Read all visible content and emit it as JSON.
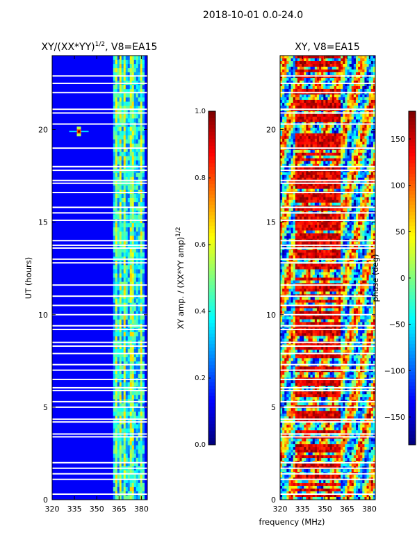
{
  "figure": {
    "suptitle": "2018-10-01 0.0-24.0",
    "xlabel": "frequency (MHz)",
    "ylabel": "UT (hours)"
  },
  "chart_data": [
    {
      "type": "heatmap",
      "title_main": "XY/(XX*YY)",
      "title_sup": "1/2",
      "title_suffix": ", V8=EA15",
      "x_ticks": [
        320,
        335,
        350,
        365,
        380
      ],
      "xlim": [
        320,
        384
      ],
      "y_ticks": [
        0,
        5,
        10,
        15,
        20
      ],
      "ylim": [
        0,
        24
      ],
      "colormap": "jet",
      "colorbar": {
        "label_main": "XY amp. / (XX*YY amp)",
        "label_sup": "1/2",
        "range": [
          0.0,
          1.0
        ],
        "ticks": [
          "0.0",
          "0.2",
          "0.4",
          "0.6",
          "0.8",
          "1.0"
        ]
      },
      "high_amplitude_band_mhz": [
        361,
        382
      ],
      "background_level": 0.12,
      "band_level": 0.45,
      "hotspot": {
        "freq_mhz": 338,
        "ut_hours": 19.9,
        "value": 1.0
      }
    },
    {
      "type": "heatmap",
      "title": "XY, V8=EA15",
      "x_ticks": [
        320,
        335,
        350,
        365,
        380
      ],
      "xlim": [
        320,
        384
      ],
      "y_ticks": [
        0,
        5,
        10,
        15,
        20
      ],
      "ylim": [
        0,
        24
      ],
      "colormap": "jet",
      "colorbar": {
        "label": "phase (deg)",
        "range": [
          -180,
          180
        ],
        "ticks": [
          "−150",
          "−100",
          "−50",
          "0",
          "50",
          "100",
          "150"
        ]
      }
    }
  ],
  "gaps_ut_hours": [
    0.3,
    1.1,
    1.4,
    1.7,
    2.0,
    3.4,
    3.55,
    4.2,
    4.35,
    5.0,
    5.3,
    5.9,
    6.05,
    6.5,
    7.0,
    7.3,
    7.9,
    8.3,
    8.5,
    9.2,
    9.4,
    10.0,
    10.5,
    11.0,
    11.6,
    12.8,
    13.0,
    13.6,
    13.75,
    14.0,
    15.1,
    15.5,
    15.8,
    16.6,
    17.1,
    17.25,
    17.8,
    18.0,
    19.0,
    20.3,
    20.9,
    21.1,
    22.0,
    22.5,
    22.9
  ]
}
